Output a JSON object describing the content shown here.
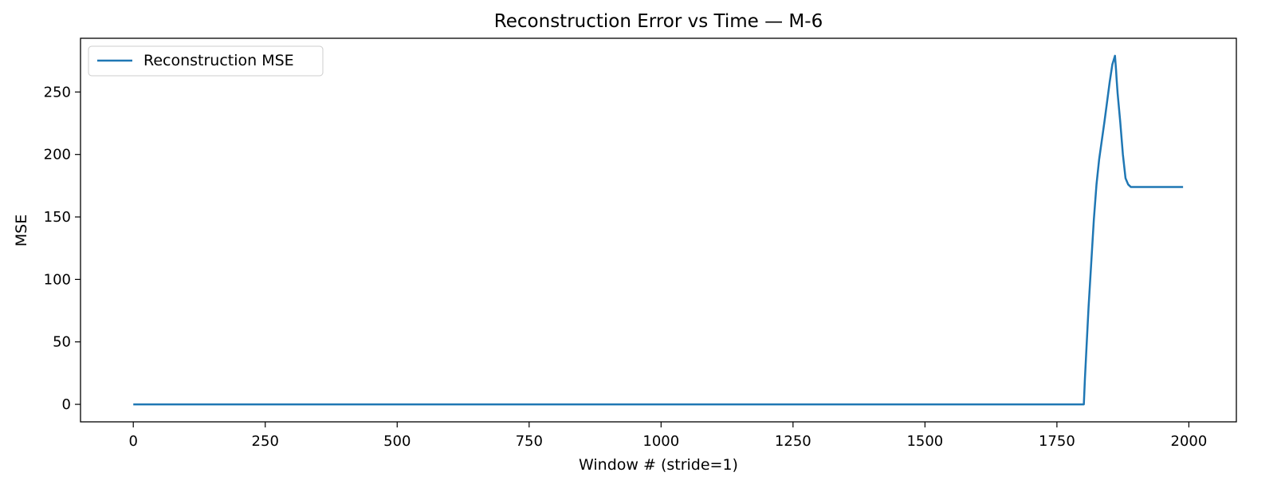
{
  "chart_data": {
    "type": "line",
    "title": "Reconstruction Error vs Time — M-6",
    "xlabel": "Window # (stride=1)",
    "ylabel": "MSE",
    "xlim": [
      -100,
      2090
    ],
    "ylim": [
      -14,
      293
    ],
    "xticks": [
      0,
      250,
      500,
      750,
      1000,
      1250,
      1500,
      1750,
      2000
    ],
    "yticks": [
      0,
      50,
      100,
      150,
      200,
      250
    ],
    "grid": false,
    "legend_position": "upper-left",
    "series": [
      {
        "name": "Reconstruction MSE",
        "color": "#1f77b4",
        "x": [
          0,
          1500,
          1801,
          1803,
          1806,
          1810,
          1815,
          1820,
          1825,
          1830,
          1835,
          1840,
          1845,
          1850,
          1855,
          1860,
          1862,
          1863,
          1865,
          1870,
          1875,
          1880,
          1885,
          1890,
          1900,
          1950,
          1989
        ],
        "y": [
          0,
          0,
          0,
          20,
          45,
          78,
          113,
          148,
          176,
          196,
          211,
          226,
          242,
          258,
          272,
          279,
          268,
          261,
          249,
          226,
          200,
          181,
          176,
          174,
          174,
          174,
          174
        ]
      }
    ]
  }
}
